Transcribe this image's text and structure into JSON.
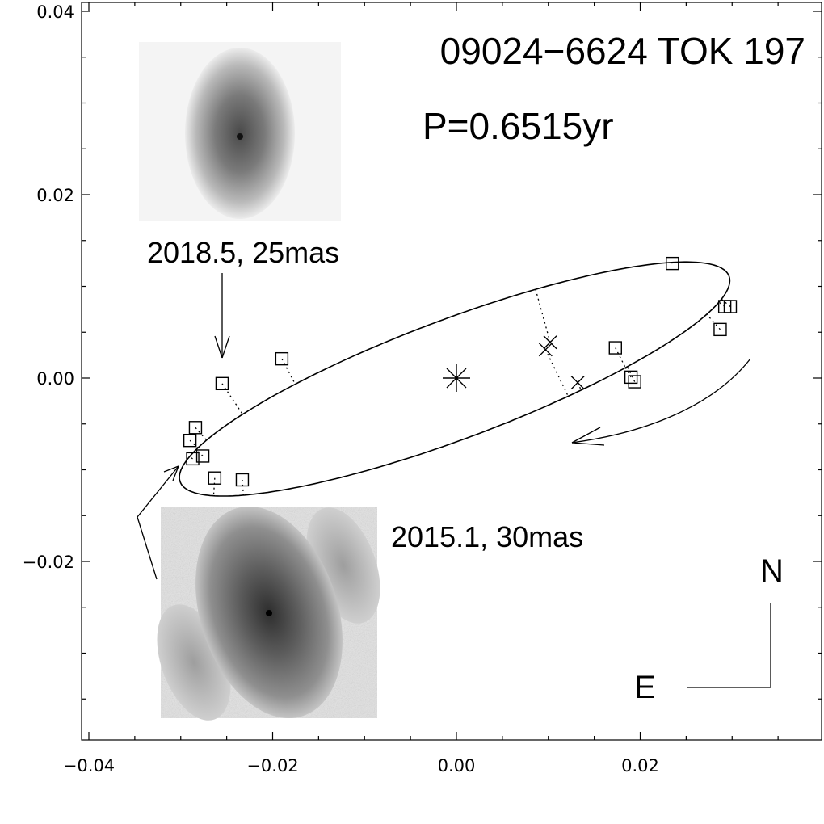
{
  "chart_data": {
    "type": "scatter",
    "title": "09024−6624  TOK 197",
    "subtitle": "P=0.6515yr",
    "xlabel": "",
    "ylabel": "",
    "xlim": [
      -0.04,
      0.0395
    ],
    "ylim": [
      -0.0395,
      0.041
    ],
    "x_ticks": [
      {
        "value": -0.04,
        "label": "−0.04"
      },
      {
        "value": -0.02,
        "label": "−0.02"
      },
      {
        "value": 0.0,
        "label": "0.00"
      },
      {
        "value": 0.02,
        "label": "0.02"
      }
    ],
    "y_ticks": [
      {
        "value": 0.04,
        "label": "0.04"
      },
      {
        "value": 0.02,
        "label": "0.02"
      },
      {
        "value": 0.0,
        "label": "0.00"
      },
      {
        "value": -0.02,
        "label": "−0.02"
      }
    ],
    "primary_star": {
      "x": 0.0,
      "y": 0.0,
      "marker": "asterisk"
    },
    "orbit": {
      "center": [
        -0.0002,
        -0.0001
      ],
      "semi_major": 0.0319,
      "semi_minor": 0.0065,
      "angle_deg": 20.6
    },
    "observations": [
      {
        "x": 0.0235,
        "y": 0.0125
      },
      {
        "x": 0.0298,
        "y": 0.0078
      },
      {
        "x": 0.0292,
        "y": 0.0078
      },
      {
        "x": 0.0287,
        "y": 0.0053
      },
      {
        "x": 0.0173,
        "y": 0.0033
      },
      {
        "x": 0.019,
        "y": 0.0001
      },
      {
        "x": 0.0194,
        "y": -0.0004
      },
      {
        "x": -0.019,
        "y": 0.0021
      },
      {
        "x": -0.0255,
        "y": -0.0006
      },
      {
        "x": -0.0284,
        "y": -0.0054
      },
      {
        "x": -0.029,
        "y": -0.0068
      },
      {
        "x": -0.0276,
        "y": -0.0085
      },
      {
        "x": -0.0287,
        "y": -0.0088
      },
      {
        "x": -0.0263,
        "y": -0.0109
      },
      {
        "x": -0.0233,
        "y": -0.0111
      }
    ],
    "predicted": [
      {
        "x": 0.0097,
        "y": 0.0031
      },
      {
        "x": 0.0102,
        "y": 0.0039
      },
      {
        "x": 0.0132,
        "y": -0.0005
      }
    ],
    "annotations": [
      {
        "text": "2018.5, 25mas"
      },
      {
        "text": "2015.1, 30mas"
      }
    ],
    "compass": {
      "north": "N",
      "east": "E"
    },
    "colors": {
      "ink": "#000000",
      "background": "#ffffff",
      "speckle_dark": "#3a3a3a",
      "speckle_light": "#b8b8b8"
    }
  }
}
